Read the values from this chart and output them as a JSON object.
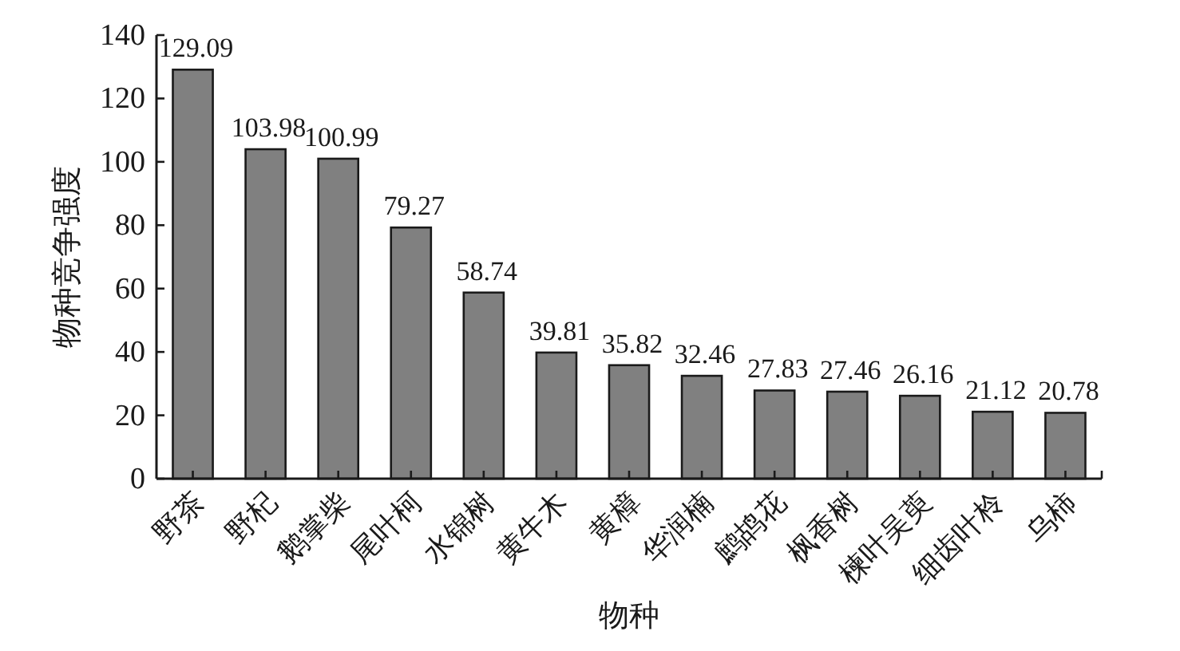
{
  "chart_data": {
    "type": "bar",
    "xlabel": "物种",
    "ylabel": "物种竞争强度",
    "categories": [
      "野茶",
      "野杞",
      "鹅掌柴",
      "尾叶柯",
      "水锦树",
      "黄牛木",
      "黄樟",
      "华润楠",
      "鹧鸪花",
      "枫香树",
      "楝叶吴萸",
      "细齿叶柃",
      "乌柿"
    ],
    "values": [
      129.09,
      103.98,
      100.99,
      79.27,
      58.74,
      39.81,
      35.82,
      32.46,
      27.83,
      27.46,
      26.16,
      21.12,
      20.78
    ],
    "color": "#808080",
    "ylim": [
      0,
      140
    ],
    "yticks": [
      0,
      20,
      40,
      60,
      80,
      100,
      120,
      140
    ],
    "data_labels": true,
    "grid": false
  }
}
